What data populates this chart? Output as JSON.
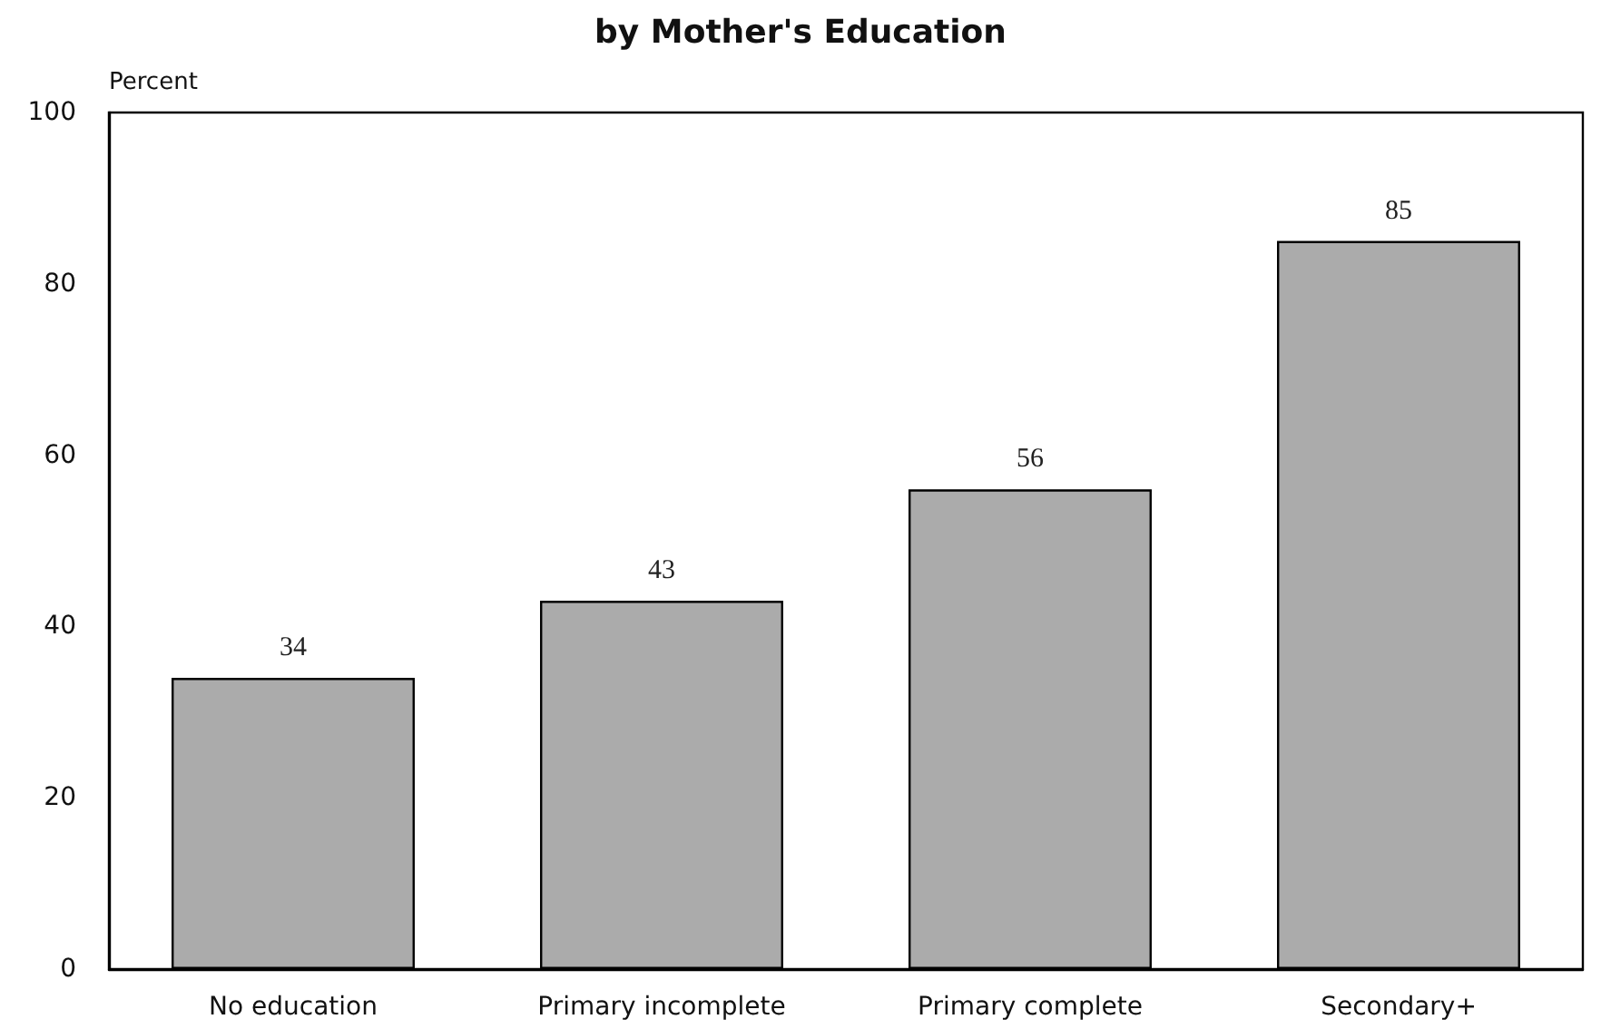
{
  "chart_data": {
    "type": "bar",
    "title": "by Mother's Education",
    "ylabel": "Percent",
    "categories": [
      "No education",
      "Primary incomplete",
      "Primary complete",
      "Secondary+"
    ],
    "values": [
      34,
      43,
      56,
      85
    ],
    "color": "#ababab",
    "ylim": [
      0,
      100
    ],
    "yticks": [
      0,
      20,
      40,
      60,
      80,
      100
    ],
    "data_labels": true
  }
}
